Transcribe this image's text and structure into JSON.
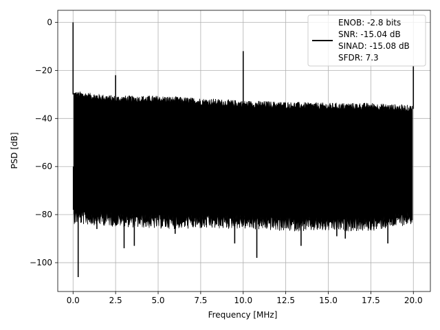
{
  "chart_data": {
    "type": "line",
    "xlabel": "Frequency [MHz]",
    "ylabel": "PSD [dB]",
    "xlim": [
      -0.9,
      21.0
    ],
    "ylim": [
      -112,
      5
    ],
    "grid": true,
    "legend_position": "top-right",
    "x_ticks": [
      "0.0",
      "2.5",
      "5.0",
      "7.5",
      "10.0",
      "12.5",
      "15.0",
      "17.5",
      "20.0"
    ],
    "x_tick_values": [
      0,
      2.5,
      5,
      7.5,
      10,
      12.5,
      15,
      17.5,
      20
    ],
    "y_ticks": [
      "0",
      "−20",
      "−40",
      "−60",
      "−80",
      "−100"
    ],
    "y_tick_values": [
      0,
      -20,
      -40,
      -60,
      -80,
      -100
    ],
    "legend_lines": [
      "ENOB: -2.8 bits",
      "SNR: -15.04 dB",
      "SINAD: -15.08 dB",
      "SFDR: 7.3"
    ],
    "series": [
      {
        "color": "#000000",
        "noise_envelope": {
          "x": [
            0.05,
            2.5,
            5,
            7.5,
            10,
            12.5,
            15,
            17.5,
            19.95
          ],
          "top": [
            -30,
            -32,
            -32,
            -33,
            -34,
            -34.5,
            -35,
            -35,
            -36
          ],
          "bottom": [
            -78,
            -79,
            -80,
            -80,
            -80,
            -81,
            -81,
            -81,
            -78
          ]
        },
        "spikes": [
          {
            "x": 0.0,
            "y": 0.0
          },
          {
            "x": 0.02,
            "y": -60.0
          },
          {
            "x": 0.3,
            "y": -106
          },
          {
            "x": 1.4,
            "y": -86
          },
          {
            "x": 2.5,
            "y": -22
          },
          {
            "x": 3.0,
            "y": -94
          },
          {
            "x": 3.6,
            "y": -93
          },
          {
            "x": 6.0,
            "y": -88
          },
          {
            "x": 9.5,
            "y": -92
          },
          {
            "x": 10.0,
            "y": -12
          },
          {
            "x": 10.8,
            "y": -98
          },
          {
            "x": 13.4,
            "y": -93
          },
          {
            "x": 15.5,
            "y": -89
          },
          {
            "x": 16.0,
            "y": -90
          },
          {
            "x": 18.5,
            "y": -92
          },
          {
            "x": 20.0,
            "y": -18
          }
        ]
      }
    ]
  }
}
